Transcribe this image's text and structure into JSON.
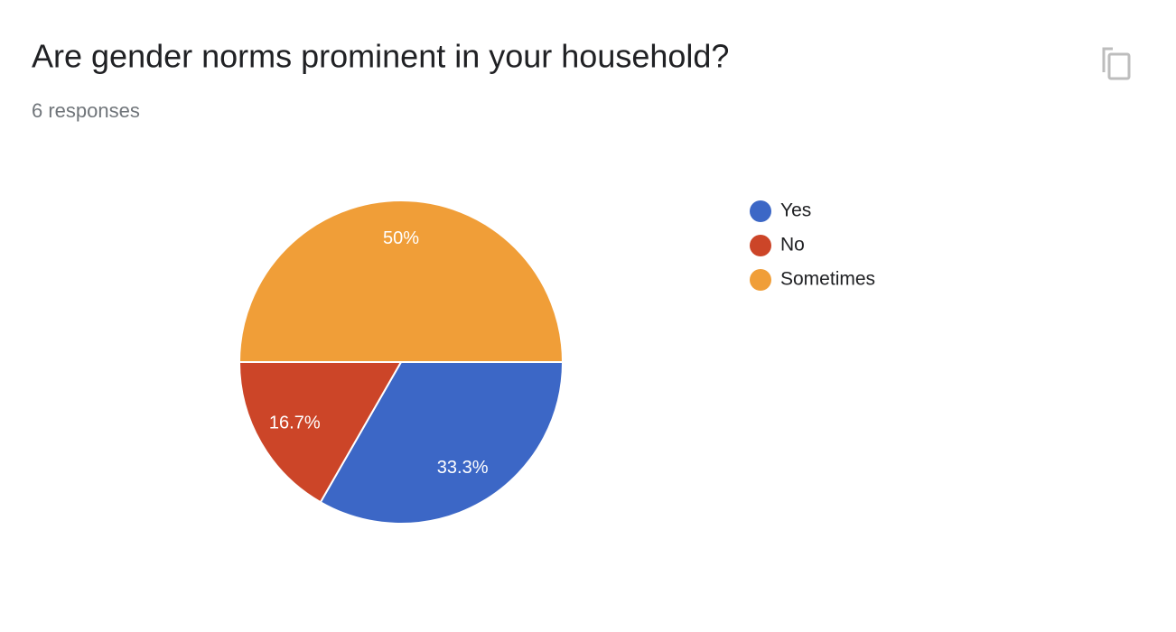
{
  "chart_data": {
    "type": "pie",
    "title": "Are gender norms prominent in your household?",
    "subtitle": "6 responses",
    "categories": [
      "Yes",
      "No",
      "Sometimes"
    ],
    "values": [
      33.3,
      16.7,
      50
    ],
    "value_labels": [
      "33.3%",
      "16.7%",
      "50%"
    ],
    "colors": [
      "#3c67c6",
      "#cc4528",
      "#f09e38"
    ],
    "legend": "right"
  }
}
